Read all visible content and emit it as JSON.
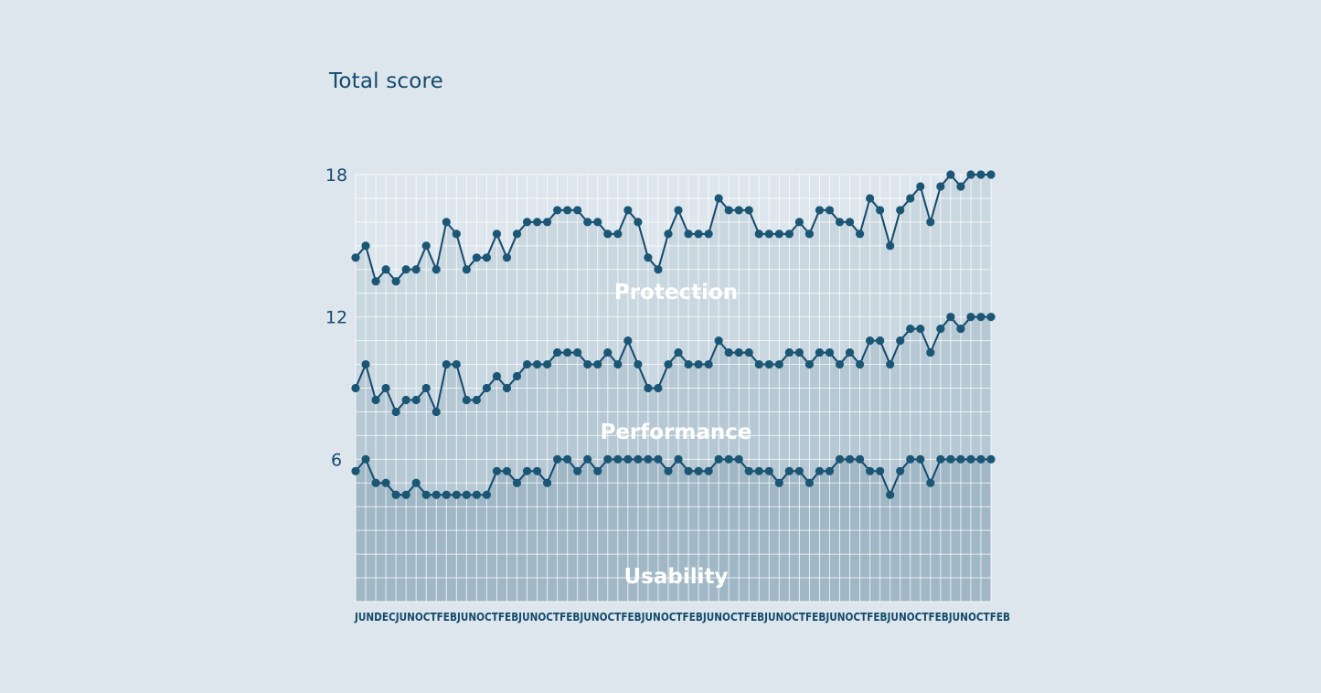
{
  "chart_data": {
    "type": "line",
    "title": "Total score",
    "ylim": [
      0,
      18
    ],
    "yticks": [
      "6",
      "12",
      "18"
    ],
    "x_tick_labels": [
      "JUN",
      "DEC",
      "JUN",
      "OCT",
      "FEB",
      "JUN",
      "OCT",
      "FEB",
      "JUN",
      "OCT",
      "FEB",
      "JUN",
      "OCT",
      "FEB",
      "JUN",
      "OCT",
      "FEB",
      "JUN",
      "OCT",
      "FEB",
      "JUN",
      "OCT",
      "FEB",
      "JUN",
      "OCT",
      "FEB",
      "JUN",
      "OCT",
      "FEB",
      "JUN",
      "OCT",
      "FEB"
    ],
    "grid": true,
    "stacked": true,
    "series": [
      {
        "name": "Usability",
        "values": [
          5.5,
          6,
          5,
          5,
          4.5,
          4.5,
          5,
          4.5,
          4.5,
          4.5,
          4.5,
          4.5,
          4.5,
          4.5,
          5.5,
          5.5,
          5,
          5.5,
          5.5,
          5,
          6,
          6,
          5.5,
          6,
          5.5,
          6,
          6,
          6,
          6,
          6,
          6,
          5.5,
          6,
          5.5,
          5.5,
          5.5,
          6,
          6,
          6,
          5.5,
          5.5,
          5.5,
          5,
          5.5,
          5.5,
          5,
          5.5,
          5.5,
          6,
          6,
          6,
          5.5,
          5.5,
          4.5,
          5.5,
          6,
          6,
          5,
          6,
          6,
          6,
          6,
          6,
          6
        ]
      },
      {
        "name": "Performance",
        "values": [
          9,
          10,
          8.5,
          9,
          8,
          8.5,
          8.5,
          9,
          8,
          10,
          10,
          8.5,
          8.5,
          9,
          9.5,
          9,
          9.5,
          10,
          10,
          10,
          10.5,
          10.5,
          10.5,
          10,
          10,
          10.5,
          10,
          11,
          10,
          9,
          9,
          10,
          10.5,
          10,
          10,
          10,
          11,
          10.5,
          10.5,
          10.5,
          10,
          10,
          10,
          10.5,
          10.5,
          10,
          10.5,
          10.5,
          10,
          10.5,
          10,
          11,
          11,
          10,
          11,
          11.5,
          11.5,
          10.5,
          11.5,
          12,
          11.5,
          12,
          12,
          12
        ]
      },
      {
        "name": "Protection",
        "values": [
          14.5,
          15,
          13.5,
          14,
          13.5,
          14,
          14,
          15,
          14,
          16,
          15.5,
          14,
          14.5,
          14.5,
          15.5,
          14.5,
          15.5,
          16,
          16,
          16,
          16.5,
          16.5,
          16.5,
          16,
          16,
          15.5,
          15.5,
          16.5,
          16,
          14.5,
          14,
          15.5,
          16.5,
          15.5,
          15.5,
          15.5,
          17,
          16.5,
          16.5,
          16.5,
          15.5,
          15.5,
          15.5,
          15.5,
          16,
          15.5,
          16.5,
          16.5,
          16,
          16,
          15.5,
          17,
          16.5,
          15,
          16.5,
          17,
          17.5,
          16,
          17.5,
          18,
          17.5,
          18,
          18,
          18
        ]
      }
    ]
  },
  "colors": {
    "background": "#dde6ec",
    "line": "#144a6c",
    "marker": "#1b5675",
    "band_top": "#c9d7e0",
    "band_mid": "#b5c8d4",
    "band_low": "#a0b7c6",
    "grid": "#ffffff"
  }
}
